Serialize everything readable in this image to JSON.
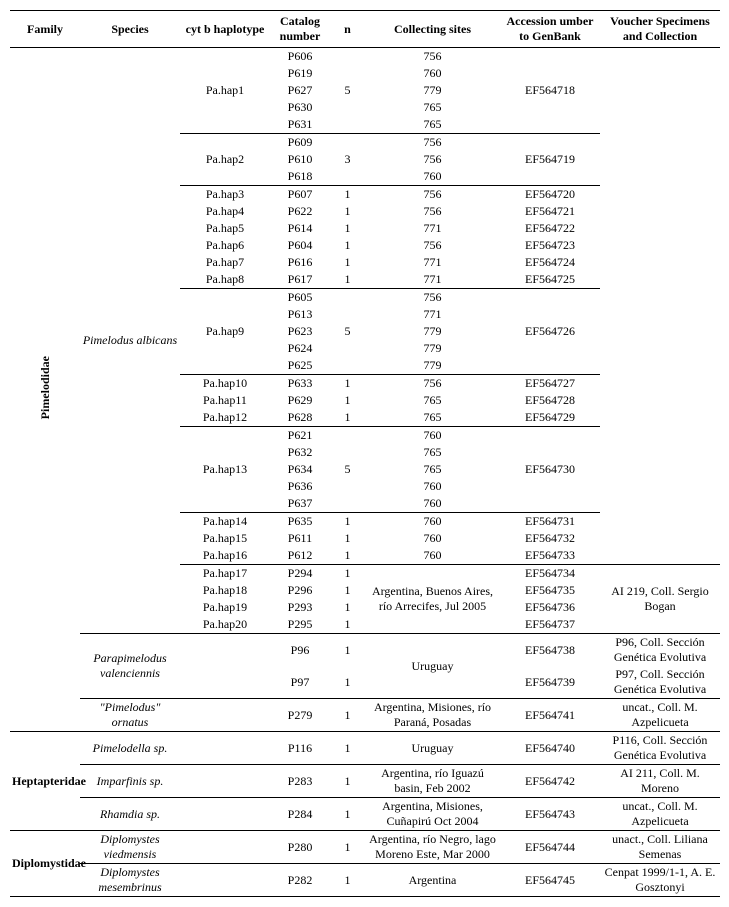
{
  "columns": [
    "Family",
    "Species",
    "cyt b haplotype",
    "Catalog number",
    "n",
    "Collecting sites",
    "Accession umber to GenBank",
    "Voucher Specimens and Collection"
  ],
  "families": [
    {
      "name": "Pimelodidae",
      "rotated": true,
      "species": [
        {
          "name": "Pimelodus albicans",
          "voucher": "",
          "haplotypes": [
            {
              "hap": "Pa.hap1",
              "n": "5",
              "acc": "EF564718",
              "site": "",
              "cats": [
                [
                  "P606",
                  "756"
                ],
                [
                  "P619",
                  "760"
                ],
                [
                  "P627",
                  "779"
                ],
                [
                  "P630",
                  "765"
                ],
                [
                  "P631",
                  "765"
                ]
              ],
              "hapSep": true
            },
            {
              "hap": "Pa.hap2",
              "n": "3",
              "acc": "EF564719",
              "site": "",
              "cats": [
                [
                  "P609",
                  "756"
                ],
                [
                  "P610",
                  "756"
                ],
                [
                  "P618",
                  "760"
                ]
              ],
              "hapSep": true
            },
            {
              "hap": "Pa.hap3",
              "n": "1",
              "acc": "EF564720",
              "site": "756",
              "cats": [
                [
                  "P607",
                  ""
                ]
              ],
              "hapSep": true
            },
            {
              "hap": "Pa.hap4",
              "n": "1",
              "acc": "EF564721",
              "site": "756",
              "cats": [
                [
                  "P622",
                  ""
                ]
              ],
              "hapSep": false
            },
            {
              "hap": "Pa.hap5",
              "n": "1",
              "acc": "EF564722",
              "site": "771",
              "cats": [
                [
                  "P614",
                  ""
                ]
              ],
              "hapSep": false
            },
            {
              "hap": "Pa.hap6",
              "n": "1",
              "acc": "EF564723",
              "site": "756",
              "cats": [
                [
                  "P604",
                  ""
                ]
              ],
              "hapSep": false
            },
            {
              "hap": "Pa.hap7",
              "n": "1",
              "acc": "EF564724",
              "site": "771",
              "cats": [
                [
                  "P616",
                  ""
                ]
              ],
              "hapSep": false
            },
            {
              "hap": "Pa.hap8",
              "n": "1",
              "acc": "EF564725",
              "site": "771",
              "cats": [
                [
                  "P617",
                  ""
                ]
              ],
              "hapSep": false
            },
            {
              "hap": "Pa.hap9",
              "n": "5",
              "acc": "EF564726",
              "site": "",
              "cats": [
                [
                  "P605",
                  "756"
                ],
                [
                  "P613",
                  "771"
                ],
                [
                  "P623",
                  "779"
                ],
                [
                  "P624",
                  "779"
                ],
                [
                  "P625",
                  "779"
                ]
              ],
              "hapSep": true
            },
            {
              "hap": "Pa.hap10",
              "n": "1",
              "acc": "EF564727",
              "site": "756",
              "cats": [
                [
                  "P633",
                  ""
                ]
              ],
              "hapSep": true
            },
            {
              "hap": "Pa.hap11",
              "n": "1",
              "acc": "EF564728",
              "site": "765",
              "cats": [
                [
                  "P629",
                  ""
                ]
              ],
              "hapSep": false
            },
            {
              "hap": "Pa.hap12",
              "n": "1",
              "acc": "EF564729",
              "site": "765",
              "cats": [
                [
                  "P628",
                  ""
                ]
              ],
              "hapSep": false
            },
            {
              "hap": "Pa.hap13",
              "n": "5",
              "acc": "EF564730",
              "site": "",
              "cats": [
                [
                  "P621",
                  "760"
                ],
                [
                  "P632",
                  "765"
                ],
                [
                  "P634",
                  "765"
                ],
                [
                  "P636",
                  "760"
                ],
                [
                  "P637",
                  "760"
                ]
              ],
              "hapSep": true
            },
            {
              "hap": "Pa.hap14",
              "n": "1",
              "acc": "EF564731",
              "site": "760",
              "cats": [
                [
                  "P635",
                  ""
                ]
              ],
              "hapSep": true
            },
            {
              "hap": "Pa.hap15",
              "n": "1",
              "acc": "EF564732",
              "site": "760",
              "cats": [
                [
                  "P611",
                  ""
                ]
              ],
              "hapSep": false
            },
            {
              "hap": "Pa.hap16",
              "n": "1",
              "acc": "EF564733",
              "site": "760",
              "cats": [
                [
                  "P612",
                  ""
                ]
              ],
              "hapSep": false
            }
          ],
          "haplotypes2": [
            {
              "hap": "Pa.hap17",
              "n": "1",
              "acc": "EF564734",
              "cat": "P294"
            },
            {
              "hap": "Pa.hap18",
              "n": "1",
              "acc": "EF564735",
              "cat": "P296"
            },
            {
              "hap": "Pa.hap19",
              "n": "1",
              "acc": "EF564736",
              "cat": "P293"
            },
            {
              "hap": "Pa.hap20",
              "n": "1",
              "acc": "EF564737",
              "cat": "P295"
            }
          ],
          "site2": "Argentina, Buenos Aires, río Arrecifes, Jul 2005",
          "voucher2": "AI 219, Coll. Sergio Bogan"
        },
        {
          "name": "Parapimelodus valenciennis",
          "rows": [
            {
              "cat": "P96",
              "n": "1",
              "acc": "EF564738",
              "voucher": "P96, Coll. Sección Genética Evolutiva"
            },
            {
              "cat": "P97",
              "n": "1",
              "acc": "EF564739",
              "voucher": "P97, Coll. Sección Genética Evolutiva"
            }
          ],
          "site": "Uruguay"
        },
        {
          "name": "\"Pimelodus\" ornatus",
          "rows": [
            {
              "cat": "P279",
              "n": "1",
              "acc": "EF564741",
              "voucher": "uncat., Coll. M. Azpelicueta"
            }
          ],
          "site": "Argentina, Misiones, río Paraná, Posadas"
        }
      ]
    },
    {
      "name": "Heptapteridae",
      "rotated": false,
      "simpleRows": [
        {
          "species": "Pimelodella sp.",
          "cat": "P116",
          "n": "1",
          "site": "Uruguay",
          "acc": "EF564740",
          "voucher": "P116, Coll. Sección Genética Evolutiva"
        },
        {
          "species": "Imparfinis sp.",
          "cat": "P283",
          "n": "1",
          "site": "Argentina, río Iguazú basin, Feb 2002",
          "acc": "EF564742",
          "voucher": "AI 211, Coll. M. Moreno"
        },
        {
          "species": "Rhamdia sp.",
          "cat": "P284",
          "n": "1",
          "site": "Argentina, Misiones, Cuñapirú Oct 2004",
          "acc": "EF564743",
          "voucher": "uncat., Coll. M. Azpelicueta"
        }
      ]
    },
    {
      "name": "Diplomystidae",
      "rotated": false,
      "simpleRows": [
        {
          "species": "Diplomystes viedmensis",
          "cat": "P280",
          "n": "1",
          "site": "Argentina, río Negro, lago Moreno Este, Mar 2000",
          "acc": "EF564744",
          "voucher": "unact., Coll. Liliana Semenas"
        },
        {
          "species": "Diplomystes mesembrinus",
          "cat": "P282",
          "n": "1",
          "site": "Argentina",
          "acc": "EF564745",
          "voucher": "Cenpat 1999/1-1, A. E. Gosztonyi"
        }
      ]
    }
  ]
}
